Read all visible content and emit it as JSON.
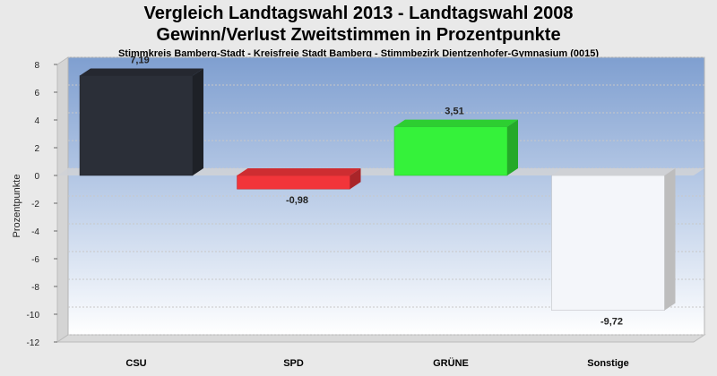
{
  "title": "Vergleich Landtagswahl 2013 - Landtagswahl 2008",
  "subtitle": "Gewinn/Verlust Zweitstimmen in Prozentpunkte",
  "subtitle2": "Stimmkreis Bamberg-Stadt - Kreisfreie Stadt Bamberg - Stimmbezirk Dientzenhofer-Gymnasium (0015)",
  "chart_data": {
    "type": "bar",
    "title": "Vergleich Landtagswahl 2013 - Landtagswahl 2008",
    "subtitle": "Gewinn/Verlust Zweitstimmen in Prozentpunkte",
    "xlabel": "",
    "ylabel": "Prozentpunkte",
    "categories": [
      "CSU",
      "SPD",
      "GRÜNE",
      "Sonstige"
    ],
    "values": [
      7.19,
      -0.98,
      3.51,
      -9.72
    ],
    "value_labels": [
      "7,19",
      "-0,98",
      "3,51",
      "-9,72"
    ],
    "colors": [
      "#2b2f38",
      "#f2353a",
      "#35f23a",
      "#f4f6fa"
    ],
    "ylim": [
      -12,
      8
    ],
    "yticks": [
      -12,
      -10,
      -8,
      -6,
      -4,
      -2,
      0,
      2,
      4,
      6,
      8
    ],
    "grid": true,
    "style": "3d"
  }
}
